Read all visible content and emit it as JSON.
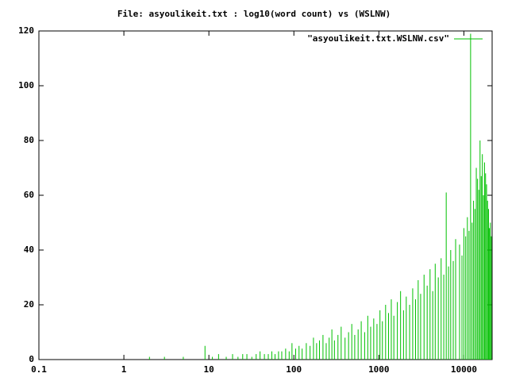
{
  "chart_data": {
    "type": "impulse",
    "title": "File: asyoulikeit.txt : log10(word count) vs (WSLNW)",
    "xscale": "log",
    "xlim": [
      0.1,
      21500
    ],
    "xticks": [
      0.1,
      1,
      10,
      100,
      1000,
      10000
    ],
    "ylim": [
      0,
      120
    ],
    "yticks": [
      0,
      20,
      40,
      60,
      80,
      100,
      120
    ],
    "legend": "top-right",
    "series": [
      {
        "name": "\"asyoulikeit.txt.WSLNW.csv\"",
        "color": "#00c000",
        "x": [
          2,
          3,
          5,
          9,
          11,
          13,
          16,
          19,
          22,
          25,
          28,
          32,
          36,
          40,
          45,
          50,
          55,
          60,
          66,
          72,
          80,
          88,
          95,
          105,
          115,
          125,
          140,
          155,
          170,
          185,
          200,
          220,
          240,
          260,
          280,
          300,
          330,
          360,
          400,
          440,
          480,
          520,
          570,
          620,
          680,
          740,
          800,
          870,
          950,
          1030,
          1100,
          1200,
          1300,
          1400,
          1500,
          1650,
          1800,
          1950,
          2100,
          2300,
          2500,
          2700,
          2900,
          3100,
          3400,
          3700,
          4000,
          4300,
          4600,
          5000,
          5400,
          5800,
          6200,
          6600,
          7000,
          7500,
          8000,
          8900,
          9500,
          10000,
          10500,
          11000,
          11500,
          12000,
          12500,
          13000,
          13500,
          14000,
          14500,
          15000,
          15500,
          16000,
          16500,
          17000,
          17500,
          18000,
          18500,
          19000,
          19500,
          20000,
          20500,
          21000
        ],
        "values": [
          1,
          1,
          1,
          5,
          1,
          2,
          1,
          2,
          1,
          2,
          2,
          1,
          2,
          3,
          2,
          2,
          3,
          2,
          3,
          3,
          4,
          3,
          6,
          4,
          5,
          4,
          6,
          5,
          8,
          6,
          7,
          9,
          6,
          8,
          11,
          7,
          9,
          12,
          8,
          10,
          13,
          9,
          11,
          14,
          10,
          16,
          12,
          15,
          13,
          18,
          14,
          20,
          17,
          22,
          16,
          21,
          25,
          18,
          23,
          20,
          26,
          22,
          29,
          24,
          31,
          27,
          33,
          25,
          35,
          30,
          37,
          31,
          61,
          34,
          40,
          36,
          44,
          42,
          38,
          48,
          45,
          52,
          47,
          119,
          50,
          58,
          55,
          70,
          66,
          62,
          80,
          67,
          75,
          60,
          72,
          68,
          64,
          58,
          55,
          48,
          50,
          45
        ]
      }
    ]
  }
}
